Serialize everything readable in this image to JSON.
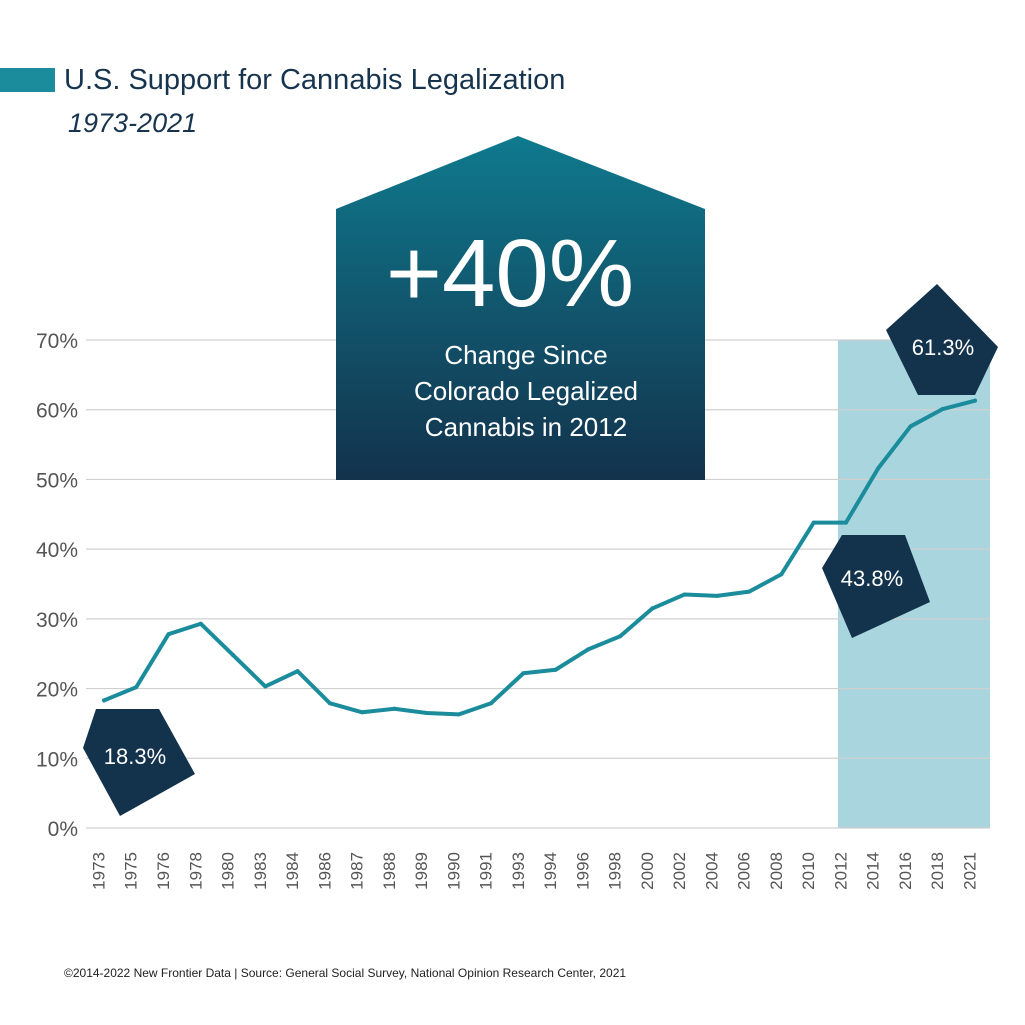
{
  "title": "U.S. Support for Cannabis Legalization",
  "subtitle": "1973-2021",
  "footer": "©2014-2022  New Frontier Data | Source: General Social Survey, National Opinion Research Center, 2021",
  "callout": {
    "big": "+40%",
    "lines": [
      "Change Since",
      "Colorado Legalized",
      "Cannabis in 2012"
    ]
  },
  "colors": {
    "line": "#1a8c9c",
    "highlight": "#a9d5de",
    "dark": "#13324c",
    "title_bar": "#1a8c9c",
    "grid": "#d0d0d0",
    "axis_text": "#555555"
  },
  "chart_data": {
    "type": "line",
    "categories": [
      "1973",
      "1975",
      "1976",
      "1978",
      "1980",
      "1983",
      "1984",
      "1986",
      "1987",
      "1988",
      "1989",
      "1990",
      "1991",
      "1993",
      "1994",
      "1996",
      "1998",
      "2000",
      "2002",
      "2004",
      "2006",
      "2008",
      "2010",
      "2012",
      "2014",
      "2016",
      "2018",
      "2021"
    ],
    "series": [
      {
        "values": [
          18.3,
          20.2,
          27.8,
          29.3,
          24.8,
          20.3,
          22.5,
          17.9,
          16.6,
          17.1,
          16.5,
          16.3,
          17.9,
          22.2,
          22.7,
          25.6,
          27.5,
          31.5,
          33.5,
          33.3,
          33.9,
          36.4,
          43.8,
          43.8,
          51.6,
          57.6,
          60.1,
          61.3
        ]
      }
    ],
    "ylim": [
      0,
      70
    ],
    "yticks": [
      "0%",
      "10%",
      "20%",
      "30%",
      "40%",
      "50%",
      "60%",
      "70%"
    ],
    "highlight_range": [
      "2012",
      "2021"
    ],
    "annotations": [
      {
        "label": "18.3%",
        "category": "1973"
      },
      {
        "label": "43.8%",
        "category": "2012"
      },
      {
        "label": "61.3%",
        "category": "2021"
      }
    ],
    "grid": true
  }
}
